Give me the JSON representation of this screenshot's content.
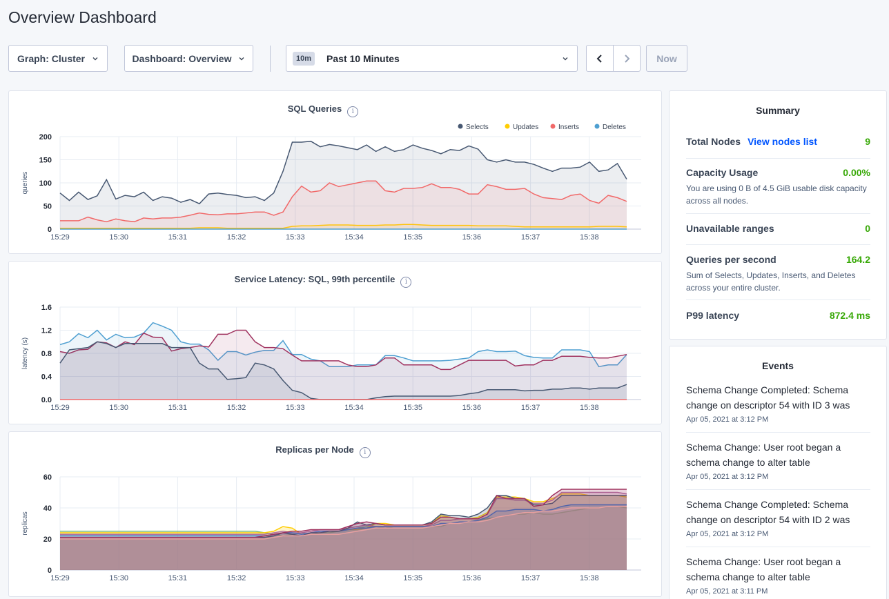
{
  "page": {
    "title": "Overview Dashboard"
  },
  "toolbar": {
    "graph_label": "Graph: Cluster",
    "dashboard_label": "Dashboard: Overview",
    "time_badge": "10m",
    "time_label": "Past 10 Minutes",
    "now_label": "Now"
  },
  "x_ticks": [
    "15:29",
    "15:30",
    "15:31",
    "15:32",
    "15:33",
    "15:34",
    "15:35",
    "15:36",
    "15:37",
    "15:38"
  ],
  "chart_data": [
    {
      "type": "line",
      "title": "SQL Queries",
      "ylabel": "queries",
      "ylim": [
        0,
        200
      ],
      "yticks": [
        "0",
        "50",
        "100",
        "150",
        "200"
      ],
      "legend_position": "top-right",
      "series": [
        {
          "name": "Selects",
          "color": "#475872",
          "values": [
            78,
            62,
            80,
            64,
            72,
            107,
            65,
            73,
            70,
            80,
            62,
            70,
            67,
            58,
            64,
            55,
            76,
            78,
            75,
            73,
            68,
            70,
            62,
            78,
            125,
            188,
            188,
            190,
            178,
            183,
            180,
            176,
            172,
            182,
            168,
            178,
            168,
            172,
            182,
            175,
            170,
            163,
            172,
            170,
            180,
            173,
            150,
            145,
            150,
            145,
            145,
            140,
            132,
            125,
            132,
            132,
            134,
            145,
            125,
            128,
            142,
            108
          ]
        },
        {
          "name": "Updates",
          "color": "#ffcd02",
          "values": [
            2,
            2,
            2,
            2,
            2,
            2,
            2,
            2,
            2,
            2,
            2,
            2,
            2,
            2,
            2,
            3,
            3,
            3,
            2,
            2,
            2,
            2,
            2,
            2,
            2,
            6,
            7,
            7,
            8,
            9,
            9,
            9,
            8,
            8,
            8,
            9,
            9,
            10,
            10,
            9,
            8,
            8,
            8,
            8,
            8,
            7,
            7,
            7,
            7,
            6,
            5,
            5,
            5,
            5,
            5,
            5,
            5,
            5,
            6,
            6,
            6,
            5
          ]
        },
        {
          "name": "Inserts",
          "color": "#f16969",
          "values": [
            18,
            18,
            18,
            26,
            20,
            16,
            22,
            18,
            16,
            24,
            22,
            24,
            24,
            26,
            30,
            35,
            32,
            31,
            33,
            33,
            35,
            37,
            37,
            30,
            37,
            70,
            93,
            80,
            83,
            100,
            92,
            96,
            100,
            104,
            104,
            83,
            80,
            88,
            88,
            90,
            98,
            90,
            90,
            86,
            76,
            76,
            96,
            92,
            86,
            86,
            88,
            76,
            68,
            66,
            64,
            73,
            76,
            62,
            56,
            73,
            68,
            60
          ]
        },
        {
          "name": "Deletes",
          "color": "#4e9fd1",
          "values": [
            0,
            0,
            0,
            0,
            0,
            0,
            0,
            0,
            0,
            0,
            0,
            0,
            0,
            0,
            0,
            0,
            0,
            0,
            0,
            0,
            0,
            0,
            0,
            0,
            0,
            0,
            0,
            0,
            0,
            0,
            0,
            0,
            0,
            0,
            0,
            0,
            0,
            0,
            0,
            0,
            0,
            0,
            0,
            0,
            0,
            0,
            0,
            0,
            0,
            0,
            0,
            0,
            0,
            0,
            0,
            0,
            0,
            0,
            0,
            0,
            0,
            0
          ]
        }
      ]
    },
    {
      "type": "line",
      "title": "Service Latency: SQL, 99th percentile",
      "ylabel": "latency (s)",
      "ylim": [
        0,
        1.6
      ],
      "yticks": [
        "0.0",
        "0.4",
        "0.8",
        "1.2",
        "1.6"
      ],
      "series": [
        {
          "color": "#4e9fd1",
          "values": [
            0.95,
            1.0,
            1.14,
            1.07,
            1.2,
            1.03,
            1.13,
            1.07,
            1.08,
            1.15,
            1.33,
            1.27,
            1.2,
            1.0,
            0.96,
            0.96,
            0.86,
            0.68,
            0.83,
            0.83,
            0.77,
            0.82,
            0.85,
            0.85,
            1.02,
            0.78,
            0.78,
            0.7,
            0.67,
            0.57,
            0.57,
            0.57,
            0.6,
            0.6,
            0.6,
            0.76,
            0.76,
            0.72,
            0.67,
            0.67,
            0.67,
            0.67,
            0.68,
            0.7,
            0.72,
            0.83,
            0.86,
            0.83,
            0.83,
            0.84,
            0.76,
            0.73,
            0.72,
            0.72,
            0.86,
            0.86,
            0.86,
            0.83,
            0.57,
            0.6,
            0.6,
            0.78
          ]
        },
        {
          "color": "#a0325f",
          "values": [
            0.83,
            0.8,
            0.86,
            0.87,
            1.0,
            0.98,
            0.9,
            1.0,
            0.95,
            1.15,
            1.08,
            1.07,
            0.84,
            0.88,
            0.9,
            0.93,
            0.91,
            1.13,
            1.13,
            1.2,
            1.2,
            1.0,
            0.9,
            0.9,
            0.88,
            0.77,
            0.67,
            0.67,
            0.67,
            0.67,
            0.67,
            0.6,
            0.57,
            0.57,
            0.6,
            0.72,
            0.72,
            0.6,
            0.6,
            0.6,
            0.6,
            0.52,
            0.52,
            0.6,
            0.68,
            0.68,
            0.68,
            0.68,
            0.68,
            0.58,
            0.6,
            0.6,
            0.68,
            0.68,
            0.75,
            0.75,
            0.75,
            0.73,
            0.72,
            0.72,
            0.75,
            0.78
          ]
        },
        {
          "color": "#475872",
          "values": [
            0.63,
            0.86,
            0.88,
            0.9,
            1.0,
            0.97,
            0.9,
            0.97,
            0.97,
            0.97,
            0.97,
            0.97,
            0.9,
            0.9,
            0.9,
            0.63,
            0.53,
            0.53,
            0.35,
            0.36,
            0.38,
            0.63,
            0.6,
            0.53,
            0.33,
            0.16,
            0.12,
            0.02,
            0.0,
            0.0,
            0.0,
            0.0,
            0.0,
            0.0,
            0.03,
            0.05,
            0.06,
            0.06,
            0.06,
            0.06,
            0.06,
            0.06,
            0.06,
            0.07,
            0.1,
            0.12,
            0.17,
            0.17,
            0.17,
            0.17,
            0.15,
            0.16,
            0.16,
            0.18,
            0.18,
            0.2,
            0.2,
            0.18,
            0.2,
            0.2,
            0.2,
            0.26
          ]
        },
        {
          "color": "#f16969",
          "values": [
            0,
            0,
            0,
            0,
            0,
            0,
            0,
            0,
            0,
            0,
            0,
            0,
            0,
            0,
            0,
            0,
            0,
            0,
            0,
            0,
            0,
            0,
            0,
            0,
            0,
            0,
            0,
            0,
            0,
            0,
            0,
            0,
            0,
            0,
            0,
            0,
            0,
            0,
            0,
            0,
            0,
            0,
            0,
            0,
            0,
            0,
            0,
            0,
            0,
            0,
            0,
            0,
            0,
            0,
            0,
            0,
            0,
            0,
            0,
            0,
            0,
            0
          ]
        }
      ]
    },
    {
      "type": "area",
      "title": "Replicas per Node",
      "ylabel": "replicas",
      "ylim": [
        0,
        60
      ],
      "yticks": [
        "0",
        "20",
        "40",
        "60"
      ],
      "series": [
        {
          "color": "#7fbf7f",
          "values": [
            25,
            25,
            25,
            25,
            25,
            25,
            25,
            25,
            25,
            25,
            25,
            25,
            25,
            25,
            25,
            25,
            25,
            25,
            25,
            25,
            25,
            25,
            24,
            23,
            22,
            23,
            24,
            23,
            24,
            24,
            25,
            26,
            27,
            28,
            28,
            27,
            28,
            28,
            28,
            28,
            28,
            28,
            30,
            30,
            31,
            32,
            33,
            34,
            35,
            36,
            36,
            37,
            36,
            36,
            37,
            38,
            39,
            40,
            40,
            41,
            41,
            40
          ]
        },
        {
          "color": "#ffcd02",
          "values": [
            24,
            24,
            24,
            24,
            24,
            24,
            24,
            24,
            24,
            24,
            24,
            24,
            24,
            24,
            24,
            24,
            24,
            24,
            24,
            24,
            24,
            24,
            24,
            25,
            28,
            27,
            23,
            24,
            25,
            25,
            25,
            26,
            26,
            27,
            30,
            30,
            29,
            29,
            29,
            29,
            30,
            35,
            34,
            33,
            33,
            34,
            37,
            47,
            47,
            47,
            46,
            44,
            44,
            46,
            49,
            49,
            49,
            48,
            48,
            48,
            48,
            47
          ]
        },
        {
          "color": "#b06fa0",
          "values": [
            23,
            23,
            23,
            23,
            23,
            23,
            23,
            23,
            23,
            23,
            23,
            23,
            23,
            23,
            23,
            23,
            23,
            23,
            23,
            23,
            23,
            23,
            23,
            24,
            25,
            24,
            24,
            25,
            26,
            26,
            26,
            27,
            28,
            29,
            28,
            28,
            28,
            28,
            28,
            28,
            29,
            32,
            32,
            33,
            33,
            33,
            36,
            46,
            46,
            45,
            45,
            43,
            43,
            45,
            50,
            50,
            50,
            50,
            50,
            50,
            50,
            49
          ]
        },
        {
          "color": "#3a7bd5",
          "values": [
            22,
            22,
            22,
            22,
            22,
            22,
            22,
            22,
            22,
            22,
            22,
            22,
            22,
            22,
            22,
            22,
            22,
            22,
            22,
            22,
            22,
            22,
            22,
            23,
            24,
            24,
            23,
            24,
            25,
            25,
            25,
            26,
            27,
            27,
            28,
            28,
            28,
            28,
            28,
            28,
            28,
            30,
            30,
            31,
            31,
            32,
            34,
            38,
            38,
            39,
            39,
            39,
            38,
            39,
            41,
            42,
            42,
            42,
            42,
            42,
            42,
            42
          ]
        },
        {
          "color": "#475872",
          "values": [
            21,
            21,
            21,
            21,
            21,
            21,
            21,
            21,
            21,
            21,
            21,
            21,
            21,
            21,
            21,
            21,
            21,
            21,
            21,
            21,
            21,
            21,
            21,
            22,
            24,
            23,
            22,
            24,
            24,
            25,
            25,
            27,
            31,
            29,
            30,
            29,
            29,
            29,
            29,
            29,
            31,
            36,
            35,
            35,
            34,
            36,
            40,
            48,
            48,
            46,
            46,
            42,
            42,
            43,
            48,
            48,
            48,
            48,
            48,
            48,
            48,
            48
          ]
        },
        {
          "color": "#a0325f",
          "values": [
            21,
            21,
            21,
            21,
            21,
            21,
            21,
            21,
            21,
            21,
            21,
            21,
            21,
            21,
            21,
            21,
            21,
            21,
            21,
            21,
            21,
            21,
            22,
            23,
            24,
            25,
            25,
            26,
            26,
            26,
            26,
            28,
            30,
            31,
            30,
            29,
            29,
            29,
            29,
            29,
            30,
            34,
            34,
            33,
            33,
            33,
            36,
            48,
            46,
            46,
            46,
            41,
            42,
            48,
            52,
            52,
            52,
            52,
            52,
            52,
            52,
            52
          ]
        },
        {
          "color": "#e8a0a0",
          "values": [
            20,
            20,
            20,
            20,
            20,
            20,
            20,
            20,
            20,
            20,
            20,
            20,
            20,
            20,
            20,
            20,
            20,
            20,
            20,
            20,
            20,
            20,
            20,
            21,
            22,
            22,
            22,
            23,
            23,
            23,
            23,
            24,
            25,
            26,
            27,
            27,
            27,
            27,
            27,
            27,
            28,
            29,
            30,
            30,
            31,
            31,
            32,
            34,
            35,
            36,
            37,
            37,
            38,
            38,
            39,
            40,
            40,
            40,
            40,
            41,
            41,
            41
          ]
        }
      ]
    }
  ],
  "summary": {
    "title": "Summary",
    "total_nodes_label": "Total Nodes",
    "view_nodes_link": "View nodes list",
    "total_nodes_value": "9",
    "capacity_label": "Capacity Usage",
    "capacity_value": "0.00%",
    "capacity_desc": "You are using 0 B of 4.5 GiB usable disk capacity across all nodes.",
    "unavailable_label": "Unavailable ranges",
    "unavailable_value": "0",
    "qps_label": "Queries per second",
    "qps_value": "164.2",
    "qps_desc": "Sum of Selects, Updates, Inserts, and Deletes across your entire cluster.",
    "p99_label": "P99 latency",
    "p99_value": "872.4 ms"
  },
  "events": {
    "title": "Events",
    "items": [
      {
        "text": "Schema Change Completed: Schema change on descriptor 54 with ID 3 was",
        "time": "Apr 05, 2021 at 3:12 PM"
      },
      {
        "text": "Schema Change: User root began a schema change to alter table",
        "time": "Apr 05, 2021 at 3:12 PM"
      },
      {
        "text": "Schema Change Completed: Schema change on descriptor 54 with ID 2 was",
        "time": "Apr 05, 2021 at 3:12 PM"
      },
      {
        "text": "Schema Change: User root began a schema change to alter table",
        "time": "Apr 05, 2021 at 3:11 PM"
      }
    ]
  }
}
